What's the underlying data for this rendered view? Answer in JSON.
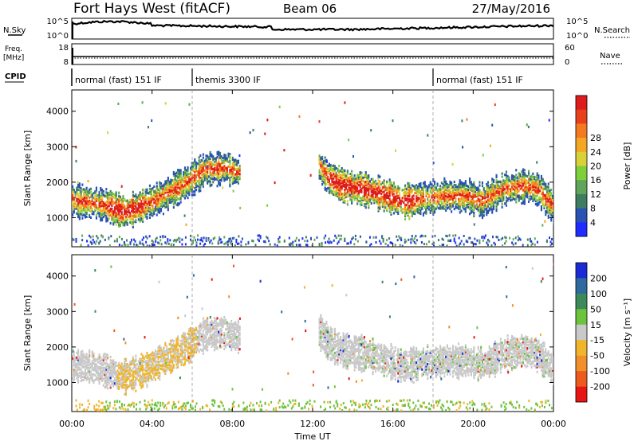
{
  "header": {
    "radar": "Fort Hays West (fitACF)",
    "beam": "Beam 06",
    "date": "27/May/2016"
  },
  "strip_labels": {
    "nsky": "N.Sky",
    "nsearch": "N.Search",
    "freq": "Freq.",
    "freq_unit": "[MHz]",
    "nave": "Nave",
    "cpid": "CPID"
  },
  "noise_axis": {
    "left_ticks": [
      "10^5",
      "10^0"
    ],
    "right_ticks": [
      "10^5",
      "10^0"
    ]
  },
  "freq_axis": {
    "left_ticks": [
      "18",
      "8"
    ],
    "right_ticks": [
      "60",
      "0"
    ]
  },
  "cpid_segments": [
    {
      "label": "normal (fast) 151 IF",
      "start_hour": 0,
      "end_hour": 6
    },
    {
      "label": "themis 3300 IF",
      "start_hour": 6,
      "end_hour": 18
    },
    {
      "label": "normal (fast) 151 IF",
      "start_hour": 18,
      "end_hour": 24
    }
  ],
  "x_axis": {
    "label": "Time UT",
    "ticks": [
      "00:00",
      "04:00",
      "08:00",
      "12:00",
      "16:00",
      "20:00",
      "00:00"
    ],
    "tick_hours": [
      0,
      4,
      8,
      12,
      16,
      20,
      24
    ],
    "range_hours": [
      0,
      24
    ],
    "dashed_lines_hours": [
      6,
      18
    ]
  },
  "panels": [
    {
      "name": "power",
      "ylabel": "Slant Range [km]",
      "yticks": [
        "1000",
        "2000",
        "3000",
        "4000"
      ],
      "ytick_values": [
        1000,
        2000,
        3000,
        4000
      ],
      "ylim": [
        180,
        4600
      ],
      "colorbar": {
        "label": "Power [dB]",
        "ticks": [
          "4",
          "8",
          "12",
          "16",
          "20",
          "24",
          "28"
        ],
        "colors": [
          "#1f2cff",
          "#2a52b4",
          "#3f7d63",
          "#5fa55a",
          "#7fcf3a",
          "#d9d13a",
          "#f5a623",
          "#f47a20",
          "#e8401a",
          "#dd1c1c"
        ]
      }
    },
    {
      "name": "velocity",
      "ylabel": "Slant Range [km]",
      "yticks": [
        "1000",
        "2000",
        "3000",
        "4000"
      ],
      "ytick_values": [
        1000,
        2000,
        3000,
        4000
      ],
      "ylim": [
        180,
        4600
      ],
      "colorbar": {
        "label": "Velocity [m s⁻¹]",
        "ticks": [
          "200",
          "100",
          "50",
          "15",
          "-15",
          "-50",
          "-100",
          "-200"
        ],
        "colors": [
          "#1a2bd6",
          "#2e6a9e",
          "#3c8a5a",
          "#6cc33c",
          "#c9c9c9",
          "#f0b52a",
          "#f0902a",
          "#ee5a1e",
          "#e81515"
        ]
      }
    }
  ],
  "chart_data": {
    "type": "heatmap",
    "title": "Fort Hays West (fitACF)",
    "xlabel": "Time UT",
    "ylabel": "Slant Range [km]",
    "xlim_hours": [
      0,
      24
    ],
    "ylim_km": [
      180,
      4600
    ],
    "series": [
      {
        "name": "Power [dB]",
        "echo_bands": [
          {
            "band": "evening_rise",
            "hours": [
              0.0,
              1.6,
              2.6,
              3.6,
              4.6,
              5.6,
              6.6,
              7.6,
              8.4
            ],
            "range_km": [
              1500,
              1350,
              1150,
              1350,
              1650,
              1950,
              2350,
              2400,
              2250
            ]
          },
          {
            "band": "dawn_decline",
            "hours": [
              12.3,
              12.8,
              13.5,
              14.5,
              15.5,
              16.5,
              17.5,
              18.5,
              19.5,
              20.5,
              21.5,
              22.5,
              23.2,
              24.0
            ],
            "range_km": [
              2450,
              2100,
              1900,
              1800,
              1650,
              1450,
              1550,
              1600,
              1600,
              1500,
              1800,
              1900,
              1800,
              1300
            ]
          },
          {
            "band": "near_range",
            "hours": [
              0,
              24
            ],
            "range_km": [
              180,
              500
            ]
          }
        ],
        "peak_dB": 28
      },
      {
        "name": "Velocity [m s⁻¹]",
        "dominant_class": "-15 to 15",
        "notes": "ground scatter dominant; orange negative velocities 02:00-06:00 near 1500-2500 km and near range 00:00-01:30"
      }
    ]
  }
}
